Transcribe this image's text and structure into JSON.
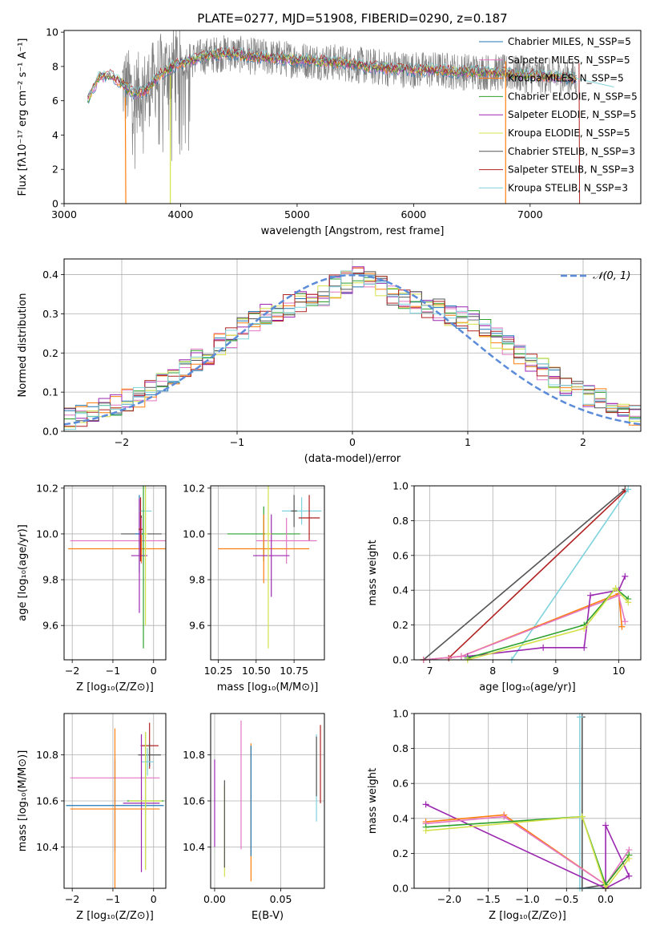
{
  "title": "PLATE=0277, MJD=51908, FIBERID=0290, z=0.187",
  "chart_data": [
    {
      "id": "spectrum",
      "type": "line",
      "xlabel": "wavelength [Angstrom, rest frame]",
      "ylabel": "Flux [fλ10⁻¹⁷ erg cm⁻² s⁻¹ A⁻¹]",
      "xlim": [
        3000,
        7950
      ],
      "ylim": [
        0,
        10.1
      ],
      "xticks": [
        3000,
        4000,
        5000,
        6000,
        7000
      ],
      "yticks": [
        0,
        2,
        4,
        6,
        8,
        10
      ],
      "grid": false,
      "legend": "top-right",
      "series": [
        {
          "name": "Chabrier MILES, N_SSP=5",
          "color": "#1f77b4"
        },
        {
          "name": "Salpeter MILES, N_SSP=5",
          "color": "#e377c2"
        },
        {
          "name": "Kroupa MILES, N_SSP=5",
          "color": "#ff7f0e"
        },
        {
          "name": "Chabrier ELODIE, N_SSP=5",
          "color": "#2ca02c"
        },
        {
          "name": "Salpeter ELODIE, N_SSP=5",
          "color": "#9b27b0"
        },
        {
          "name": "Kroupa ELODIE, N_SSP=5",
          "color": "#d4e14a"
        },
        {
          "name": "Chabrier STELIB, N_SSP=3",
          "color": "#555555"
        },
        {
          "name": "Salpeter STELIB, N_SSP=3",
          "color": "#b22222"
        },
        {
          "name": "Kroupa STELIB, N_SSP=3",
          "color": "#7fd3dc"
        }
      ],
      "observed_color": "#808080",
      "model_continuum": {
        "x": [
          3200,
          3300,
          3400,
          3500,
          3600,
          3700,
          3800,
          3900,
          4000,
          4200,
          4400,
          4600,
          4800,
          5000,
          5200,
          5400,
          5600,
          5800,
          6000,
          6200,
          6400,
          6600,
          6800,
          7000,
          7200,
          7400
        ],
        "y": [
          6.0,
          7.4,
          7.5,
          7.0,
          6.4,
          6.6,
          7.4,
          7.9,
          8.2,
          8.6,
          8.8,
          8.6,
          8.5,
          8.4,
          8.3,
          8.2,
          8.0,
          7.9,
          7.8,
          7.8,
          7.7,
          7.7,
          7.6,
          7.5,
          7.4,
          7.3
        ]
      },
      "observed_range": [
        3500,
        7400
      ]
    },
    {
      "id": "residuals",
      "type": "line",
      "xlabel": "(data-model)/error",
      "ylabel": "Normed distribution",
      "xlim": [
        -2.5,
        2.5
      ],
      "ylim": [
        0,
        0.44
      ],
      "xticks": [
        -2,
        -1,
        0,
        1,
        2
      ],
      "yticks": [
        0.0,
        0.1,
        0.2,
        0.3,
        0.4
      ],
      "xtick_labels": [
        "−2",
        "−1",
        "0",
        "1",
        "2"
      ],
      "ytick_labels": [
        "0.0",
        "0.1",
        "0.2",
        "0.3",
        "0.4"
      ],
      "grid": true,
      "legend": "top-right",
      "gaussian_label": "𝒩(0, 1)",
      "gaussian_color": "#5b8bd9",
      "bin_width": 0.1,
      "base_hist": [
        0.03,
        0.04,
        0.05,
        0.06,
        0.07,
        0.08,
        0.09,
        0.1,
        0.12,
        0.14,
        0.16,
        0.18,
        0.2,
        0.22,
        0.24,
        0.26,
        0.28,
        0.3,
        0.31,
        0.32,
        0.33,
        0.34,
        0.35,
        0.37,
        0.38,
        0.39,
        0.39,
        0.37,
        0.35,
        0.34,
        0.33,
        0.32,
        0.31,
        0.3,
        0.29,
        0.28,
        0.26,
        0.24,
        0.22,
        0.2,
        0.18,
        0.16,
        0.14,
        0.12,
        0.11,
        0.09,
        0.08,
        0.06,
        0.05,
        0.04
      ]
    },
    {
      "id": "z-age",
      "type": "scatter",
      "xlabel": "Z [log₁₀(Z/Z⊙)]",
      "ylabel": "age  [log₁₀(age/yr)]",
      "xlim": [
        -2.2,
        0.3
      ],
      "ylim": [
        9.45,
        10.21
      ],
      "xticks": [
        -2,
        -1,
        0
      ],
      "yticks": [
        9.6,
        9.8,
        10.0,
        10.2
      ],
      "xtick_labels": [
        "−2",
        "−1",
        "0"
      ],
      "ytick_labels": [
        "9.6",
        "9.8",
        "10.0",
        "10.2"
      ],
      "grid": true,
      "points": [
        {
          "x": -0.3,
          "y": 10.0,
          "xerr": 0.5,
          "yerr": 0.08,
          "color": "#555555"
        },
        {
          "x": -0.35,
          "y": 10.0,
          "xerr": 0.1,
          "yerr": 0.17,
          "color": "#1f77b4"
        },
        {
          "x": -0.3,
          "y": 9.97,
          "xerr": 1.75,
          "yerr": 0.1,
          "color": "#e377c2"
        },
        {
          "x": -0.3,
          "y": 9.935,
          "xerr": 1.8,
          "yerr": 0.06,
          "color": "#ff7f0e"
        },
        {
          "x": -0.35,
          "y": 9.905,
          "xerr": 0.2,
          "yerr": 0.25,
          "color": "#9b27b0"
        },
        {
          "x": -0.2,
          "y": 10.1,
          "xerr": 0.15,
          "yerr": 0.12,
          "color": "#7fd3dc"
        },
        {
          "x": -0.25,
          "y": 10.0,
          "xerr": 0.05,
          "yerr": 0.5,
          "color": "#2ca02c"
        },
        {
          "x": -0.2,
          "y": 10.0,
          "xerr": 0.05,
          "yerr": 0.4,
          "color": "#d4e14a"
        },
        {
          "x": -0.32,
          "y": 10.02,
          "xerr": 0.05,
          "yerr": 0.14,
          "color": "#b22222"
        }
      ]
    },
    {
      "id": "mass-age",
      "type": "scatter",
      "xlabel": "mass [log₁₀(M/M⊙)]",
      "ylabel": "",
      "xlim": [
        10.2,
        10.95
      ],
      "ylim": [
        9.45,
        10.21
      ],
      "xticks": [
        10.25,
        10.5,
        10.75
      ],
      "yticks": [
        9.6,
        9.8,
        10.0,
        10.2
      ],
      "xtick_labels": [
        "10.25",
        "10.50",
        "10.75"
      ],
      "ytick_labels": [
        "9.6",
        "9.8",
        "10.0",
        "10.2"
      ],
      "grid": true,
      "points": [
        {
          "x": 10.8,
          "y": 10.1,
          "xerr": 0.13,
          "yerr": 0.06,
          "color": "#7fd3dc"
        },
        {
          "x": 10.85,
          "y": 10.07,
          "xerr": 0.07,
          "yerr": 0.1,
          "color": "#b22222"
        },
        {
          "x": 10.55,
          "y": 10.0,
          "xerr": 0.24,
          "yerr": 0.12,
          "color": "#2ca02c"
        },
        {
          "x": 10.7,
          "y": 9.97,
          "xerr": 0.2,
          "yerr": 0.1,
          "color": "#e377c2"
        },
        {
          "x": 10.55,
          "y": 9.935,
          "xerr": 0.3,
          "yerr": 0.15,
          "color": "#ff7f0e"
        },
        {
          "x": 10.6,
          "y": 9.905,
          "xerr": 0.12,
          "yerr": 0.18,
          "color": "#9b27b0"
        },
        {
          "x": 10.58,
          "y": 10.0,
          "xerr": 0.02,
          "yerr": 0.5,
          "color": "#d4e14a"
        },
        {
          "x": 10.75,
          "y": 10.1,
          "xerr": 0.02,
          "yerr": 0.07,
          "color": "#555555"
        }
      ]
    },
    {
      "id": "age-weight",
      "type": "line",
      "xlabel": "age  [log₁₀(age/yr)]",
      "ylabel": "mass weight",
      "xlim": [
        6.75,
        10.35
      ],
      "ylim": [
        0,
        1.0
      ],
      "xticks": [
        7,
        8,
        9,
        10
      ],
      "yticks": [
        0.0,
        0.2,
        0.4,
        0.6,
        0.8,
        1.0
      ],
      "xtick_labels": [
        "7",
        "8",
        "9",
        "10"
      ],
      "ytick_labels": [
        "0.0",
        "0.2",
        "0.4",
        "0.6",
        "0.8",
        "1.0"
      ],
      "grid": true,
      "series": [
        {
          "color": "#555555",
          "x": [
            6.9,
            10.1
          ],
          "y": [
            0.0,
            0.98
          ]
        },
        {
          "color": "#b22222",
          "x": [
            7.3,
            10.1
          ],
          "y": [
            0.01,
            0.97
          ]
        },
        {
          "color": "#7fd3dc",
          "x": [
            8.3,
            10.15
          ],
          "y": [
            0.0,
            0.98
          ]
        },
        {
          "color": "#ff7f0e",
          "x": [
            6.9,
            7.5,
            10.0,
            10.05
          ],
          "y": [
            0.0,
            0.02,
            0.38,
            0.19
          ]
        },
        {
          "color": "#e377c2",
          "x": [
            6.9,
            7.5,
            10.0,
            10.1
          ],
          "y": [
            0.0,
            0.02,
            0.37,
            0.22
          ]
        },
        {
          "color": "#9b27b0",
          "x": [
            7.6,
            8.8,
            9.45,
            9.55,
            10.0,
            10.1
          ],
          "y": [
            0.02,
            0.07,
            0.07,
            0.37,
            0.4,
            0.48
          ]
        },
        {
          "color": "#2ca02c",
          "x": [
            7.6,
            9.45,
            9.95,
            10.15
          ],
          "y": [
            0.01,
            0.2,
            0.41,
            0.35
          ]
        },
        {
          "color": "#d4e14a",
          "x": [
            7.6,
            9.45,
            9.95,
            10.15
          ],
          "y": [
            0.0,
            0.18,
            0.41,
            0.33
          ]
        }
      ]
    },
    {
      "id": "z-mass",
      "type": "scatter",
      "xlabel": "Z [log₁₀(Z/Z⊙)]",
      "ylabel": "mass [log₁₀(M/M⊙)]",
      "xlim": [
        -2.2,
        0.3
      ],
      "ylim": [
        10.22,
        10.98
      ],
      "xticks": [
        -2,
        -1,
        0
      ],
      "yticks": [
        10.4,
        10.6,
        10.8
      ],
      "xtick_labels": [
        "−2",
        "−1",
        "0"
      ],
      "ytick_labels": [
        "10.4",
        "10.6",
        "10.8"
      ],
      "grid": true,
      "points": [
        {
          "x": -0.1,
          "y": 10.84,
          "xerr": 0.22,
          "yerr": 0.1,
          "color": "#b22222"
        },
        {
          "x": -0.1,
          "y": 10.8,
          "xerr": 0.28,
          "yerr": 0.05,
          "color": "#555555"
        },
        {
          "x": -0.15,
          "y": 10.77,
          "xerr": 0.15,
          "yerr": 0.06,
          "color": "#7fd3dc"
        },
        {
          "x": -0.95,
          "y": 10.7,
          "xerr": 1.1,
          "yerr": 0.0,
          "color": "#e377c2"
        },
        {
          "x": -0.3,
          "y": 10.59,
          "xerr": 0.45,
          "yerr": 0.3,
          "color": "#9b27b0"
        },
        {
          "x": -0.95,
          "y": 10.58,
          "xerr": 1.2,
          "yerr": 0.2,
          "color": "#1f77b4"
        },
        {
          "x": -0.95,
          "y": 10.565,
          "xerr": 1.1,
          "yerr": 0.35,
          "color": "#ff7f0e"
        },
        {
          "x": -0.2,
          "y": 10.6,
          "xerr": 0.45,
          "yerr": 0.3,
          "color": "#2ca02c"
        },
        {
          "x": -0.2,
          "y": 10.6,
          "xerr": 0.4,
          "yerr": 0.3,
          "color": "#d4e14a"
        }
      ]
    },
    {
      "id": "ebv-mass",
      "type": "scatter",
      "xlabel": "E(B-V)",
      "ylabel": "",
      "xlim": [
        -0.003,
        0.083
      ],
      "ylim": [
        10.22,
        10.98
      ],
      "xticks": [
        0.0,
        0.05
      ],
      "yticks": [
        10.4,
        10.6,
        10.8
      ],
      "xtick_labels": [
        "0.00",
        "0.05"
      ],
      "ytick_labels": [
        "10.4",
        "10.6",
        "10.8"
      ],
      "grid": true,
      "points": [
        {
          "x": 0.0,
          "y": 10.59,
          "xerr": 0.0,
          "yerr": 0.19,
          "color": "#9b27b0"
        },
        {
          "x": 0.0075,
          "y": 10.47,
          "xerr": 0.0,
          "yerr": 0.2,
          "color": "#d4e14a"
        },
        {
          "x": 0.0075,
          "y": 10.5,
          "xerr": 0.0,
          "yerr": 0.19,
          "color": "#555555"
        },
        {
          "x": 0.02,
          "y": 10.67,
          "xerr": 0.0,
          "yerr": 0.28,
          "color": "#e377c2"
        },
        {
          "x": 0.0275,
          "y": 10.55,
          "xerr": 0.0,
          "yerr": 0.3,
          "color": "#ff7f0e"
        },
        {
          "x": 0.0275,
          "y": 10.6,
          "xerr": 0.0,
          "yerr": 0.24,
          "color": "#1f77b4"
        },
        {
          "x": 0.077,
          "y": 10.7,
          "xerr": 0.0,
          "yerr": 0.19,
          "color": "#7fd3dc"
        },
        {
          "x": 0.08,
          "y": 10.76,
          "xerr": 0.0,
          "yerr": 0.17,
          "color": "#b22222"
        },
        {
          "x": 0.077,
          "y": 10.75,
          "xerr": 0.0,
          "yerr": 0.13,
          "color": "#555555"
        }
      ]
    },
    {
      "id": "z-weight",
      "type": "line",
      "xlabel": "Z [log₁₀(Z/Z⊙)]",
      "ylabel": "mass weight",
      "xlim": [
        -2.45,
        0.45
      ],
      "ylim": [
        0,
        1.0
      ],
      "xticks": [
        -2.0,
        -1.5,
        -1.0,
        -0.5,
        0.0
      ],
      "yticks": [
        0.0,
        0.2,
        0.4,
        0.6,
        0.8,
        1.0
      ],
      "xtick_labels": [
        "−2.0",
        "−1.5",
        "−1.0",
        "−0.5",
        "0.0"
      ],
      "ytick_labels": [
        "0.0",
        "0.2",
        "0.4",
        "0.6",
        "0.8",
        "1.0"
      ],
      "grid": true,
      "series": [
        {
          "color": "#555555",
          "x": [
            -0.3,
            -0.3,
            0.0
          ],
          "y": [
            0.98,
            0.0,
            0.02
          ]
        },
        {
          "color": "#7fd3dc",
          "x": [
            -0.33,
            -0.33,
            0.0
          ],
          "y": [
            0.98,
            0.0,
            0.0
          ]
        },
        {
          "color": "#9b27b0",
          "x": [
            -2.3,
            0.0,
            0.0,
            0.3,
            0.0,
            0.0
          ],
          "y": [
            0.48,
            0.0,
            0.36,
            0.07,
            0.0,
            0.0
          ]
        },
        {
          "color": "#ff7f0e",
          "x": [
            -2.3,
            -1.3,
            0.0,
            0.3
          ],
          "y": [
            0.38,
            0.42,
            0.02,
            0.19
          ]
        },
        {
          "color": "#e377c2",
          "x": [
            -2.3,
            -1.3,
            0.0,
            0.3
          ],
          "y": [
            0.37,
            0.41,
            0.02,
            0.22
          ]
        },
        {
          "color": "#2ca02c",
          "x": [
            -2.3,
            -0.3,
            0.0,
            0.3
          ],
          "y": [
            0.35,
            0.41,
            0.02,
            0.19
          ]
        },
        {
          "color": "#d4e14a",
          "x": [
            -2.3,
            -0.3,
            0.0,
            0.3
          ],
          "y": [
            0.33,
            0.41,
            0.0,
            0.17
          ]
        }
      ]
    }
  ]
}
